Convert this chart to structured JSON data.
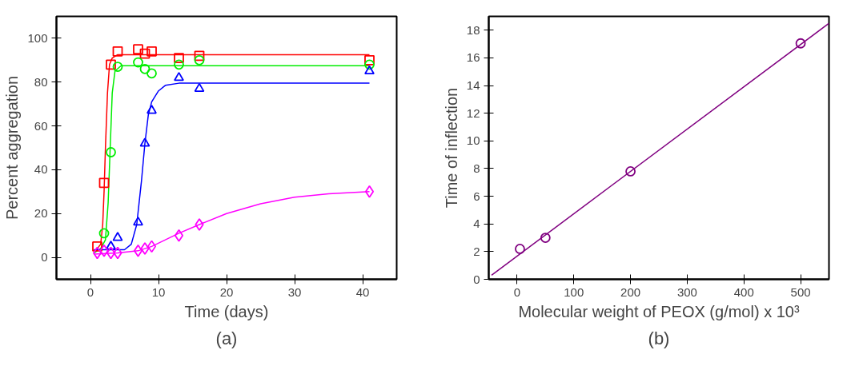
{
  "chart_data": [
    {
      "type": "scatter",
      "xlabel": "Time (days)",
      "ylabel": "Percent aggregation",
      "annotations": [
        "(a)"
      ],
      "xlim": [
        -5,
        45
      ],
      "ylim": [
        -10,
        110
      ],
      "xticks": [
        0,
        10,
        20,
        30,
        40
      ],
      "yticks": [
        0,
        20,
        40,
        60,
        80,
        100
      ],
      "grid": false,
      "series": [
        {
          "type": "line",
          "color": "#ff0000",
          "x": [
            0.5,
            1,
            1.5,
            1.8,
            2,
            2.2,
            2.5,
            2.8,
            3.2,
            4,
            10,
            41
          ],
          "values": [
            3,
            4,
            6,
            15,
            30,
            50,
            75,
            88,
            91,
            92.5,
            92.5,
            92.5
          ]
        },
        {
          "type": "line",
          "color": "#00ee00",
          "x": [
            0.5,
            1.5,
            2.2,
            2.6,
            2.9,
            3.2,
            3.6,
            4.5,
            41
          ],
          "values": [
            2,
            4,
            8,
            25,
            50,
            75,
            85,
            87.5,
            87.5
          ]
        },
        {
          "type": "line",
          "color": "#0000ff",
          "x": [
            0.5,
            5,
            6,
            6.8,
            7.5,
            8,
            8.5,
            9,
            10,
            11,
            13,
            41
          ],
          "values": [
            3.5,
            3.5,
            6,
            15,
            35,
            52,
            65,
            71,
            76,
            78.5,
            79.5,
            79.5
          ]
        },
        {
          "type": "line",
          "color": "#ff00ff",
          "x": [
            0.5,
            4,
            7,
            9,
            11,
            13,
            16,
            20,
            25,
            30,
            35,
            41
          ],
          "values": [
            1.5,
            2,
            3,
            5,
            8,
            11,
            15,
            20,
            24.5,
            27.5,
            29,
            30
          ]
        },
        {
          "type": "scatter",
          "marker": "square",
          "color": "#ff0000",
          "x": [
            1,
            2,
            3,
            4,
            7,
            8,
            9,
            13,
            16,
            41
          ],
          "values": [
            5,
            34,
            88,
            94,
            95,
            93,
            94,
            91,
            92,
            90
          ]
        },
        {
          "type": "scatter",
          "marker": "circle",
          "color": "#00ee00",
          "x": [
            2,
            3,
            4,
            7,
            8,
            9,
            13,
            16,
            41
          ],
          "values": [
            11,
            48,
            87,
            89,
            86,
            84,
            88,
            90,
            88
          ]
        },
        {
          "type": "scatter",
          "marker": "triangle",
          "color": "#0000ff",
          "x": [
            3,
            4,
            7,
            8,
            9,
            13,
            16,
            41
          ],
          "values": [
            5,
            9,
            16,
            52,
            67,
            82,
            77,
            85
          ]
        },
        {
          "type": "scatter",
          "marker": "diamond",
          "color": "#ff00ff",
          "x": [
            1,
            2,
            3,
            4,
            7,
            8,
            9,
            13,
            16,
            41
          ],
          "values": [
            2,
            3,
            2,
            2,
            3,
            4,
            5,
            10,
            15,
            30
          ]
        }
      ]
    },
    {
      "type": "scatter",
      "xlabel": "Molecular weight of PEOX (g/mol) x 10³",
      "ylabel": "Time of inflection",
      "annotations": [
        "(b)"
      ],
      "xlim": [
        -50,
        550
      ],
      "ylim": [
        0,
        19
      ],
      "xticks": [
        0,
        100,
        200,
        300,
        400,
        500
      ],
      "yticks": [
        0,
        2,
        4,
        6,
        8,
        10,
        12,
        14,
        16,
        18
      ],
      "grid": false,
      "series": [
        {
          "type": "line",
          "color": "#800080",
          "x": [
            -45,
            550
          ],
          "values": [
            0.3,
            18.5
          ]
        },
        {
          "type": "scatter",
          "marker": "circle",
          "color": "#800080",
          "x": [
            5,
            50,
            200,
            500
          ],
          "values": [
            2.2,
            3,
            7.8,
            17.05
          ]
        }
      ]
    }
  ]
}
